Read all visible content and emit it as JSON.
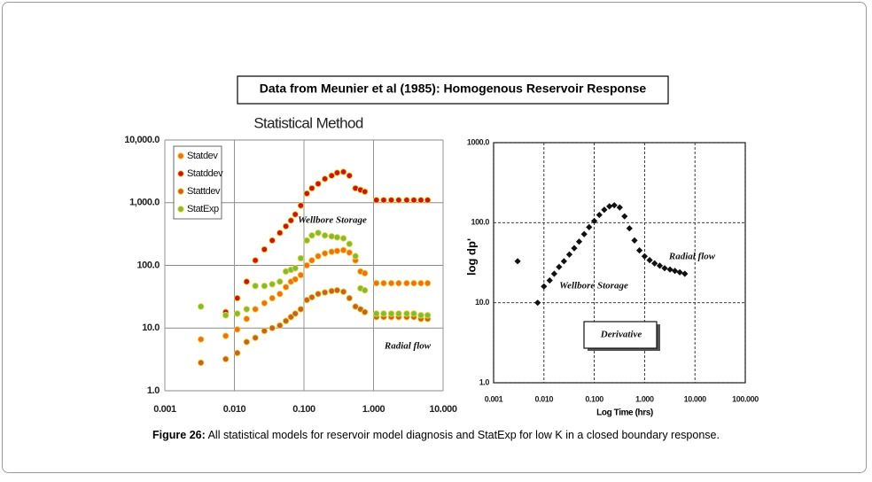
{
  "figure": {
    "title": "Data from Meunier et al (1985): Homogenous Reservoir Response",
    "caption_label": "Figure 26:",
    "caption": "All statistical models for reservoir model diagnosis and StatExp for low K in a closed boundary response."
  },
  "chart_data": [
    {
      "type": "scatter",
      "title": "Statistical Method",
      "log_x": true,
      "log_y": true,
      "grid": true,
      "grid_style": "solid",
      "legend": "top-left",
      "marker": "circle",
      "xlim": [
        0.001,
        10
      ],
      "ylim": [
        1,
        10000
      ],
      "xticks": [
        0.001,
        {
          "value": 0.01,
          "label": "0.010"
        },
        {
          "value": 0.1,
          "label": "0.100"
        },
        {
          "value": 1,
          "label": "1.000"
        },
        {
          "value": 10,
          "label": "10.000"
        }
      ],
      "yticks": [
        {
          "value": 1,
          "label": "1.0"
        },
        {
          "value": 10,
          "label": "10.0"
        },
        {
          "value": 100,
          "label": "100.0"
        },
        {
          "value": 1000,
          "label": "1,000.0"
        },
        {
          "value": 10000,
          "label": "10,000.0"
        }
      ],
      "annotations": [
        "Wellbore Storage",
        "Radial flow"
      ],
      "x": [
        0.0033,
        0.0075,
        0.011,
        0.015,
        0.02,
        0.027,
        0.035,
        0.045,
        0.055,
        0.065,
        0.075,
        0.09,
        0.11,
        0.13,
        0.16,
        0.2,
        0.25,
        0.3,
        0.37,
        0.45,
        0.55,
        0.65,
        0.75,
        1.1,
        1.4,
        1.8,
        2.3,
        3,
        3.8,
        4.8,
        6
      ],
      "series": [
        {
          "name": "Statdev",
          "color": "#e8701e",
          "values": [
            6.6,
            7.5,
            9.5,
            14,
            20,
            25,
            30,
            35,
            45,
            55,
            60,
            70,
            100,
            120,
            140,
            155,
            165,
            170,
            175,
            160,
            120,
            80,
            75,
            52,
            52,
            52,
            52,
            52,
            52,
            52,
            52
          ]
        },
        {
          "name": "Statddev",
          "color": "#c4161c",
          "values": [
            null,
            18,
            30,
            55,
            120,
            180,
            250,
            330,
            420,
            520,
            650,
            900,
            1400,
            1700,
            2000,
            2400,
            2700,
            3000,
            3100,
            2700,
            1700,
            1600,
            1500,
            1100,
            1100,
            1100,
            1100,
            1100,
            1100,
            1100,
            1100
          ]
        },
        {
          "name": "Stattdev",
          "color": "#c0622a",
          "values": [
            2.8,
            3.2,
            4,
            6,
            7,
            9,
            10,
            11,
            13,
            15,
            17,
            20,
            28,
            31,
            35,
            37,
            39,
            40,
            38,
            30,
            22,
            20,
            18,
            15,
            15,
            15,
            15,
            15,
            15,
            14,
            14
          ]
        },
        {
          "name": "StatExp",
          "color": "#7dbb3c",
          "values": [
            22,
            16,
            17,
            20,
            47,
            47,
            50,
            55,
            80,
            85,
            90,
            130,
            250,
            300,
            330,
            300,
            290,
            280,
            270,
            220,
            140,
            43,
            40,
            17,
            17,
            17,
            17,
            17,
            17,
            16,
            16
          ]
        }
      ]
    },
    {
      "type": "scatter",
      "log_x": true,
      "log_y": true,
      "grid": true,
      "grid_style": "dashed",
      "marker": "diamond",
      "color": "#111111",
      "x_label": "Log Time (hrs)",
      "y_label": "log dp'",
      "xlim": [
        0.001,
        100
      ],
      "ylim": [
        1,
        1000
      ],
      "xticks": [
        0.001,
        {
          "value": 0.01,
          "label": "0.010"
        },
        {
          "value": 0.1,
          "label": "0.100"
        },
        {
          "value": 1,
          "label": "1.000"
        },
        {
          "value": 10,
          "label": "10.000"
        },
        {
          "value": 100,
          "label": "100.000"
        }
      ],
      "yticks": [
        {
          "value": 1,
          "label": "1.0"
        },
        {
          "value": 10,
          "label": "10.0"
        },
        {
          "value": 100,
          "label": "100.0"
        },
        {
          "value": 1000,
          "label": "1000.0"
        }
      ],
      "annotations": [
        "Wellbore Storage",
        "Radial flow",
        "Derivative"
      ],
      "x": [
        0.003,
        0.0075,
        0.01,
        0.013,
        0.016,
        0.02,
        0.025,
        0.032,
        0.04,
        0.05,
        0.063,
        0.079,
        0.1,
        0.126,
        0.158,
        0.2,
        0.25,
        0.32,
        0.4,
        0.5,
        0.63,
        0.79,
        1.0,
        1.26,
        1.58,
        2,
        2.5,
        3.2,
        4,
        5,
        6.3
      ],
      "values": [
        33,
        10,
        16,
        19,
        23,
        28,
        33,
        40,
        48,
        58,
        72,
        88,
        105,
        125,
        145,
        160,
        165,
        155,
        120,
        85,
        60,
        45,
        38,
        34,
        31,
        29,
        27,
        26,
        25,
        24,
        23
      ]
    }
  ]
}
